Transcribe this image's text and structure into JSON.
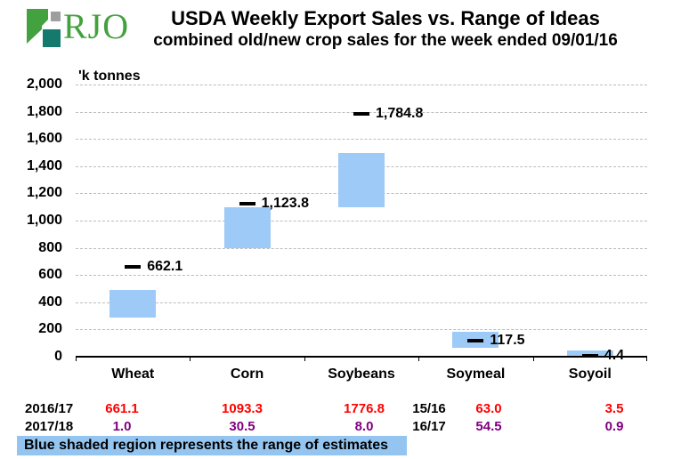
{
  "logo": {
    "text": "RJO",
    "icon_green": "#44A13F",
    "icon_teal": "#157A6E",
    "icon_gray": "#9E9E9E",
    "text_color": "#44A13F"
  },
  "header": {
    "title": "USDA Weekly Export Sales vs. Range of Ideas",
    "subtitle": "combined old/new crop sales for the week ended 09/01/16"
  },
  "chart_data": {
    "type": "bar",
    "title": "USDA Weekly Export Sales vs. Range of Ideas",
    "subtitle": "combined old/new crop sales for the week ended 09/01/16",
    "ylabel": "'k tonnes",
    "xlabel": "",
    "ylim": [
      0,
      2000
    ],
    "ytick_step": 200,
    "grid": "horizontal-dashed",
    "legend_position": "none",
    "categories": [
      "Wheat",
      "Corn",
      "Soybeans",
      "Soymeal",
      "Soyoil"
    ],
    "series": [
      {
        "name": "range of estimates low",
        "values": [
          290,
          800,
          1100,
          65,
          0
        ]
      },
      {
        "name": "range of estimates high",
        "values": [
          490,
          1100,
          1500,
          185,
          45
        ]
      },
      {
        "name": "actual combined old/new crop sales",
        "values": [
          662.1,
          1123.8,
          1784.8,
          117.5,
          4.4
        ]
      }
    ],
    "point_labels": [
      "662.1",
      "1,123.8",
      "1,784.8",
      "117.5",
      "4.4"
    ],
    "bar_color": "#9DCAF7",
    "marker_color": "#000000"
  },
  "table": {
    "row1_color": "#FF0000",
    "row2_color": "#800080",
    "rows": [
      {
        "year": "2016/17",
        "wheat": "661.1",
        "corn": "1093.3",
        "soybeans": "1776.8",
        "year_meal_oil": "15/16",
        "soymeal": "63.0",
        "soyoil": "3.5"
      },
      {
        "year": "2017/18",
        "wheat": "1.0",
        "corn": "30.5",
        "soybeans": "8.0",
        "year_meal_oil": "16/17",
        "soymeal": "54.5",
        "soyoil": "0.9"
      }
    ]
  },
  "note": {
    "text": "Blue shaded region represents the range of estimates",
    "highlight_color": "#94C5F0"
  }
}
